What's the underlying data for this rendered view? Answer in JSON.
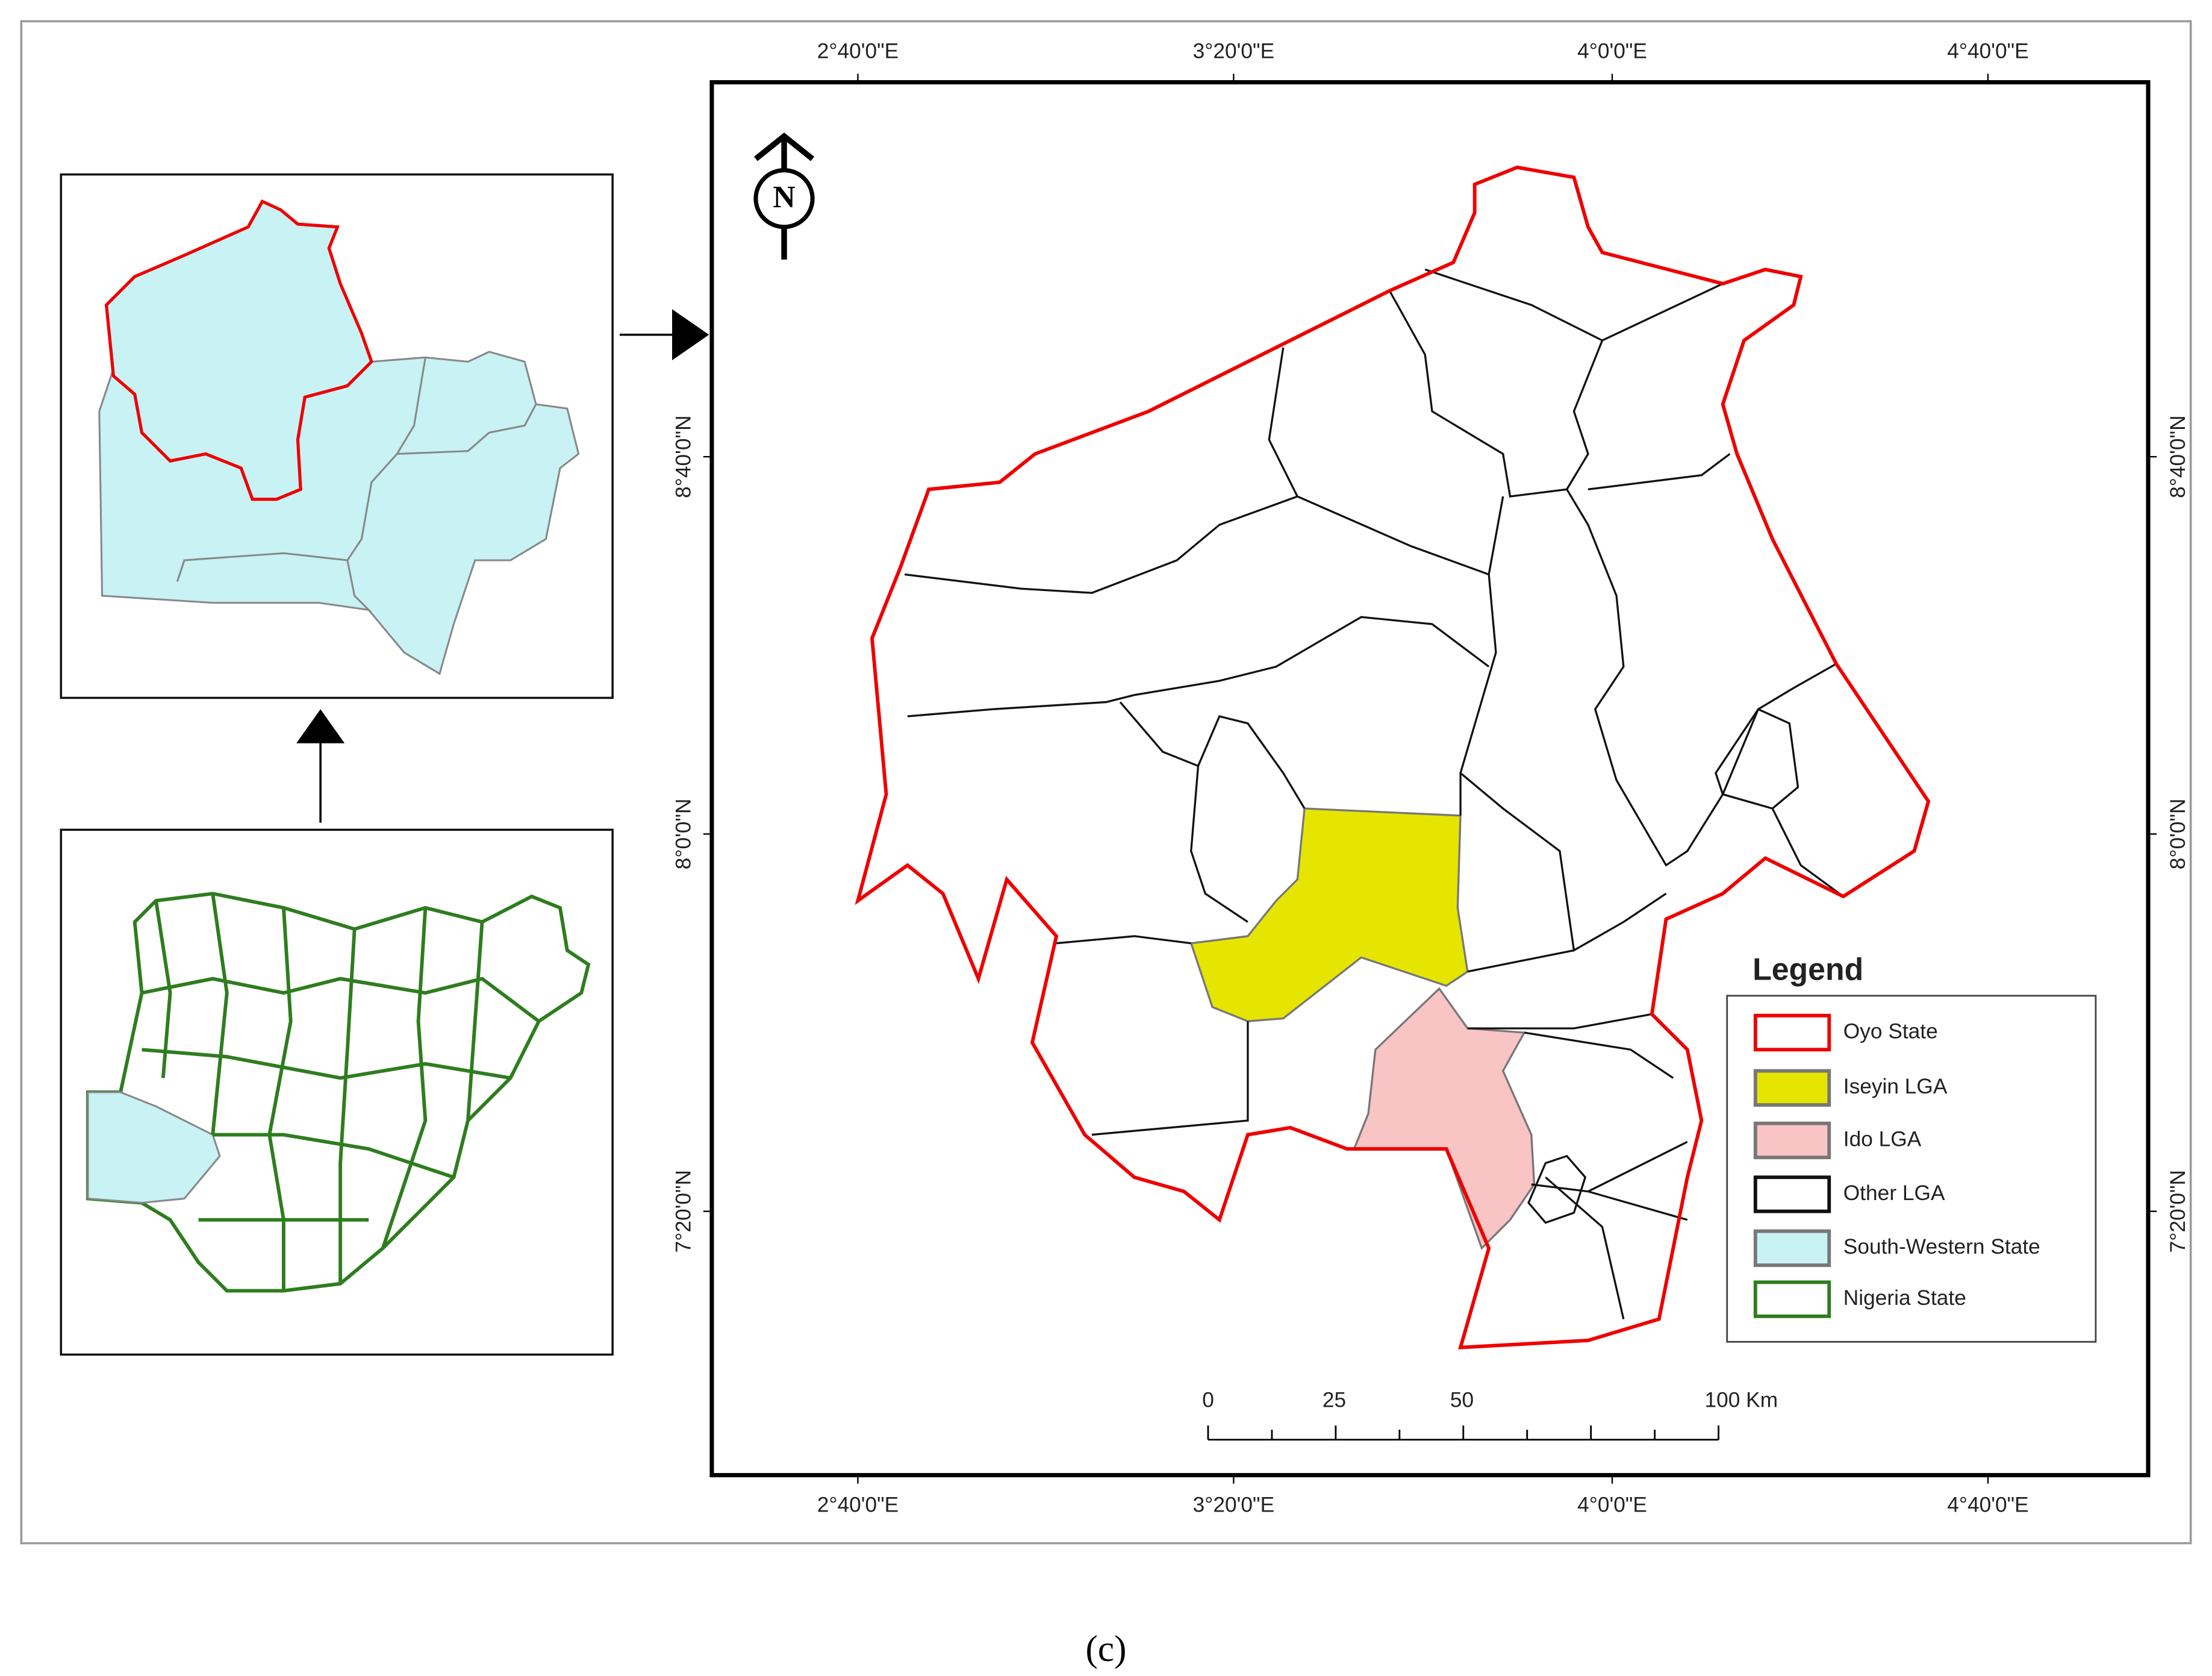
{
  "map": {
    "lon_labels": [
      "2°40'0\"E",
      "3°20'0\"E",
      "4°0'0\"E",
      "4°40'0\"E"
    ],
    "lat_labels": [
      "8°40'0\"N",
      "8°0'0\"N",
      "7°20'0\"N"
    ],
    "north": "N",
    "legend": {
      "title": "Legend",
      "items": [
        "Oyo State",
        "Iseyin LGA",
        "Ido LGA",
        "Other LGA",
        "South-Western State",
        "Nigeria State"
      ]
    },
    "scale_bar": [
      "0",
      "25",
      "50",
      "100 Km"
    ]
  },
  "caption": "(c)"
}
